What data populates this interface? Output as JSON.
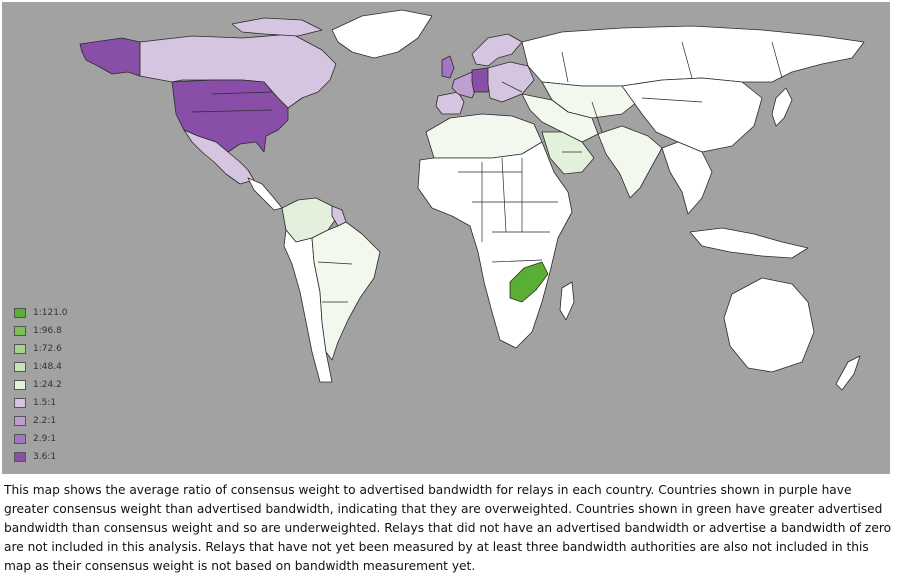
{
  "map": {
    "colors": {
      "ocean": "#a2a2a2",
      "no_data": "#ffffff",
      "land_stroke": "#2a2a2a"
    },
    "legend": [
      {
        "label": "1:121.0",
        "color": "#5aae35"
      },
      {
        "label": "1:96.8",
        "color": "#7cbf5c"
      },
      {
        "label": "1:72.6",
        "color": "#a4d38c"
      },
      {
        "label": "1:48.4",
        "color": "#c6e4b6"
      },
      {
        "label": "1:24.2",
        "color": "#e3f0dc"
      },
      {
        "label": "1.5:1",
        "color": "#d6c5e0"
      },
      {
        "label": "2.2:1",
        "color": "#bf9fd2"
      },
      {
        "label": "2.9:1",
        "color": "#a276c0"
      },
      {
        "label": "3.6:1",
        "color": "#884ea8"
      }
    ],
    "regions": [
      {
        "name": "usa",
        "color": "#884ea8"
      },
      {
        "name": "alaska",
        "color": "#884ea8"
      },
      {
        "name": "canada",
        "color": "#d6c5e0"
      },
      {
        "name": "greenland",
        "color": "#ffffff"
      },
      {
        "name": "mexico",
        "color": "#d6c5e0"
      },
      {
        "name": "central-america",
        "color": "#ffffff"
      },
      {
        "name": "venezuela-colombia",
        "color": "#e3f0dc"
      },
      {
        "name": "guyana",
        "color": "#d6c5e0"
      },
      {
        "name": "south-america",
        "color": "#ffffff"
      },
      {
        "name": "brazil-argentina",
        "color": "#f2f8ee"
      },
      {
        "name": "western-europe",
        "color": "#bf9fd2"
      },
      {
        "name": "germany",
        "color": "#884ea8"
      },
      {
        "name": "scandinavia",
        "color": "#d6c5e0"
      },
      {
        "name": "uk",
        "color": "#a276c0"
      },
      {
        "name": "iberia",
        "color": "#d6c5e0"
      },
      {
        "name": "eastern-europe",
        "color": "#d6c5e0"
      },
      {
        "name": "russia",
        "color": "#ffffff"
      },
      {
        "name": "north-africa",
        "color": "#f2f8ee"
      },
      {
        "name": "africa",
        "color": "#ffffff"
      },
      {
        "name": "zambia",
        "color": "#5aae35"
      },
      {
        "name": "saudi-arabia",
        "color": "#e3f0dc"
      },
      {
        "name": "middle-east",
        "color": "#f2f8ee"
      },
      {
        "name": "central-asia",
        "color": "#f2f8ee"
      },
      {
        "name": "china",
        "color": "#ffffff"
      },
      {
        "name": "india",
        "color": "#f2f8ee"
      },
      {
        "name": "southeast-asia",
        "color": "#ffffff"
      },
      {
        "name": "japan",
        "color": "#ffffff"
      },
      {
        "name": "indonesia",
        "color": "#ffffff"
      },
      {
        "name": "australia",
        "color": "#ffffff"
      },
      {
        "name": "new-zealand",
        "color": "#ffffff"
      },
      {
        "name": "madagascar",
        "color": "#ffffff"
      }
    ]
  },
  "caption": "This map shows the average ratio of consensus weight to advertised bandwidth for relays in each country. Countries shown in purple have greater consensus weight than advertised bandwidth, indicating that they are overweighted. Countries shown in green have greater advertised bandwidth than consensus weight and so are underweighted. Relays that did not have an advertised bandwidth or advertise a bandwidth of zero are not included in this analysis. Relays that have not yet been measured by at least three bandwidth authorities are also not included in this map as their consensus weight is not based on bandwidth measurement yet."
}
